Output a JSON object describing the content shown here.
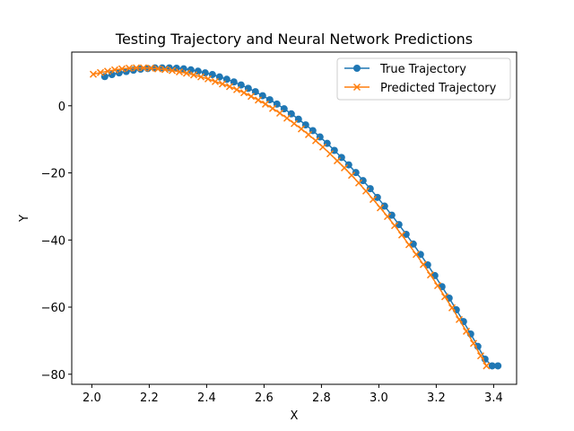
{
  "chart_data": {
    "type": "line",
    "title": "Testing Trajectory and Neural Network Predictions",
    "xlabel": "X",
    "ylabel": "Y",
    "xlim": [
      1.93,
      3.48
    ],
    "ylim": [
      -83,
      16
    ],
    "xticks": [
      2.0,
      2.2,
      2.4,
      2.6,
      2.8,
      3.0,
      3.2,
      3.4
    ],
    "xtick_labels": [
      "2.0",
      "2.2",
      "2.4",
      "2.6",
      "2.8",
      "3.0",
      "3.2",
      "3.4"
    ],
    "yticks": [
      0,
      -20,
      -40,
      -60,
      -80
    ],
    "ytick_labels": [
      "0",
      "−20",
      "−40",
      "−60",
      "−80"
    ],
    "grid": false,
    "legend_position": "top-right",
    "series": [
      {
        "name": "True Trajectory",
        "color": "#1f77b4",
        "marker": "circle",
        "x": [
          2.045,
          2.07,
          2.095,
          2.12,
          2.145,
          2.17,
          2.195,
          2.22,
          2.245,
          2.27,
          2.295,
          2.32,
          2.345,
          2.37,
          2.395,
          2.42,
          2.445,
          2.47,
          2.495,
          2.52,
          2.545,
          2.57,
          2.595,
          2.62,
          2.645,
          2.67,
          2.695,
          2.72,
          2.745,
          2.77,
          2.795,
          2.82,
          2.845,
          2.87,
          2.895,
          2.92,
          2.945,
          2.97,
          2.995,
          3.02,
          3.045,
          3.07,
          3.095,
          3.12,
          3.145,
          3.17,
          3.195,
          3.22,
          3.245,
          3.27,
          3.295,
          3.32,
          3.345,
          3.37,
          3.395,
          3.415
        ],
        "y": [
          8.7,
          9.3,
          9.8,
          10.2,
          10.6,
          10.9,
          11.1,
          11.3,
          11.3,
          11.3,
          11.2,
          11.0,
          10.7,
          10.3,
          9.8,
          9.3,
          8.6,
          7.9,
          7.1,
          6.2,
          5.2,
          4.2,
          3.0,
          1.8,
          0.5,
          -0.9,
          -2.4,
          -4.0,
          -5.7,
          -7.4,
          -9.3,
          -11.2,
          -13.3,
          -15.4,
          -17.6,
          -19.9,
          -22.3,
          -24.7,
          -27.3,
          -29.9,
          -32.6,
          -35.4,
          -38.3,
          -41.2,
          -44.3,
          -47.4,
          -50.6,
          -53.9,
          -57.3,
          -60.8,
          -64.3,
          -68.0,
          -71.7,
          -75.5,
          -77.5,
          -77.5
        ]
      },
      {
        "name": "Predicted Trajectory",
        "color": "#ff7f0e",
        "marker": "x",
        "x": [
          2.005,
          2.03,
          2.055,
          2.08,
          2.105,
          2.13,
          2.155,
          2.18,
          2.205,
          2.23,
          2.255,
          2.28,
          2.305,
          2.33,
          2.355,
          2.38,
          2.405,
          2.43,
          2.455,
          2.48,
          2.505,
          2.53,
          2.555,
          2.58,
          2.605,
          2.63,
          2.655,
          2.68,
          2.705,
          2.73,
          2.755,
          2.78,
          2.805,
          2.83,
          2.855,
          2.88,
          2.905,
          2.93,
          2.955,
          2.98,
          3.005,
          3.03,
          3.055,
          3.08,
          3.105,
          3.13,
          3.155,
          3.18,
          3.205,
          3.23,
          3.255,
          3.28,
          3.305,
          3.33,
          3.355,
          3.375
        ],
        "y": [
          9.4,
          9.9,
          10.3,
          10.7,
          11.0,
          11.2,
          11.3,
          11.3,
          11.2,
          11.0,
          10.8,
          10.5,
          10.1,
          9.7,
          9.2,
          8.6,
          8.0,
          7.2,
          6.5,
          5.7,
          4.8,
          3.9,
          2.8,
          1.7,
          0.5,
          -0.8,
          -2.2,
          -3.7,
          -5.3,
          -6.9,
          -8.6,
          -10.4,
          -12.3,
          -14.3,
          -16.4,
          -18.5,
          -20.7,
          -23.0,
          -25.4,
          -27.9,
          -30.4,
          -33.0,
          -35.7,
          -38.5,
          -41.4,
          -44.3,
          -47.3,
          -50.4,
          -53.6,
          -56.9,
          -60.2,
          -63.7,
          -67.2,
          -70.8,
          -74.5,
          -77.5
        ]
      }
    ]
  }
}
